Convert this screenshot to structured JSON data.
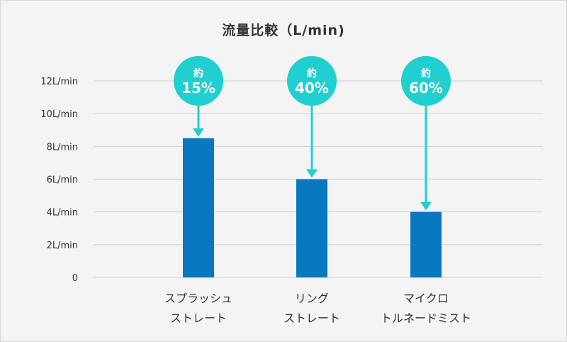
{
  "chart_data": {
    "type": "bar",
    "title": "流量比較（L/min)",
    "categories": [
      [
        "スプラッシュ",
        "ストレート"
      ],
      [
        "リング",
        "ストレート"
      ],
      [
        "マイクロ",
        "トルネードミスト"
      ]
    ],
    "values": [
      8.5,
      6.0,
      4.0
    ],
    "yticks": [
      "0",
      "2L/min",
      "4L/min",
      "6L/min",
      "8L/min",
      "10L/min",
      "12L/min"
    ],
    "ylim": [
      0,
      12
    ],
    "grid": true,
    "bar_color": "#0a78be",
    "callouts": [
      {
        "line1": "約",
        "line2": "15%"
      },
      {
        "line1": "約",
        "line2": "40%"
      },
      {
        "line1": "約",
        "line2": "60%"
      }
    ],
    "callout_color": "#20cfd0"
  }
}
